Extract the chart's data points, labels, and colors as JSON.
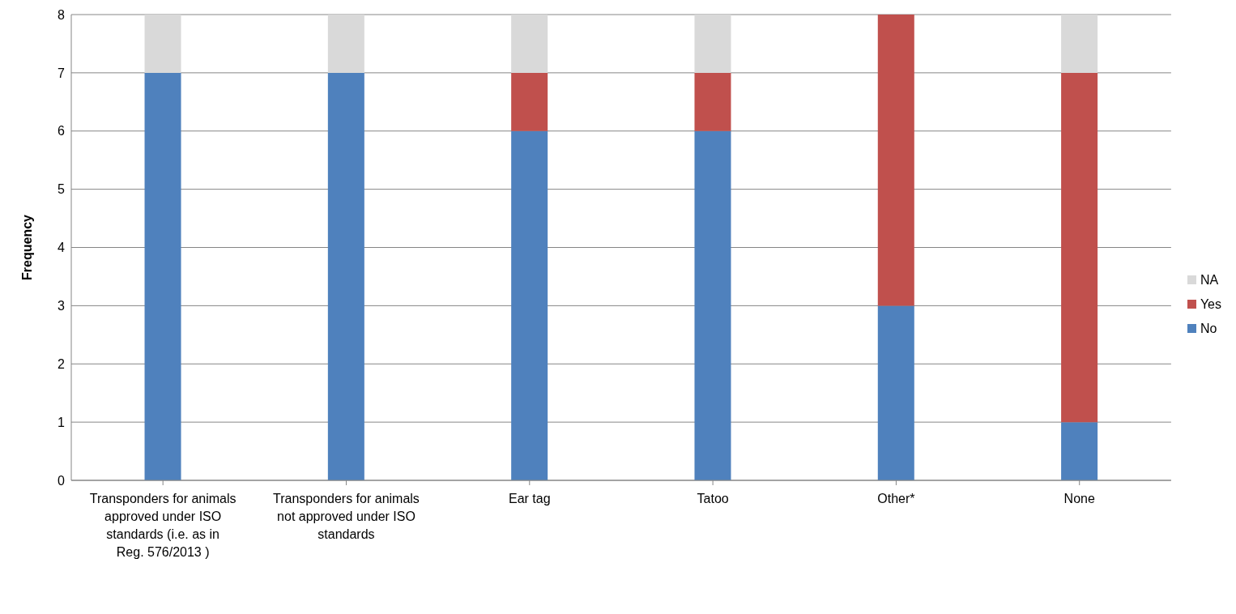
{
  "chart_data": {
    "type": "bar",
    "stacked": true,
    "ylabel": "Frequency",
    "categories": [
      "Transponders for animals approved under ISO standards (i.e. as in Reg. 576/2013 )",
      "Transponders for animals not approved under ISO standards",
      "Ear tag",
      "Tatoo",
      "Other*",
      "None"
    ],
    "series": [
      {
        "name": "No",
        "color": "#4f81bd",
        "values": [
          7,
          7,
          6,
          6,
          3,
          1
        ]
      },
      {
        "name": "Yes",
        "color": "#c0504d",
        "values": [
          0,
          0,
          1,
          1,
          5,
          6
        ]
      },
      {
        "name": "NA",
        "color": "#d9d9d9",
        "values": [
          1,
          1,
          1,
          1,
          0,
          1
        ]
      }
    ],
    "ylim": [
      0,
      8
    ],
    "yticks": [
      0,
      1,
      2,
      3,
      4,
      5,
      6,
      7,
      8
    ],
    "grid": "y",
    "legend": "right"
  }
}
